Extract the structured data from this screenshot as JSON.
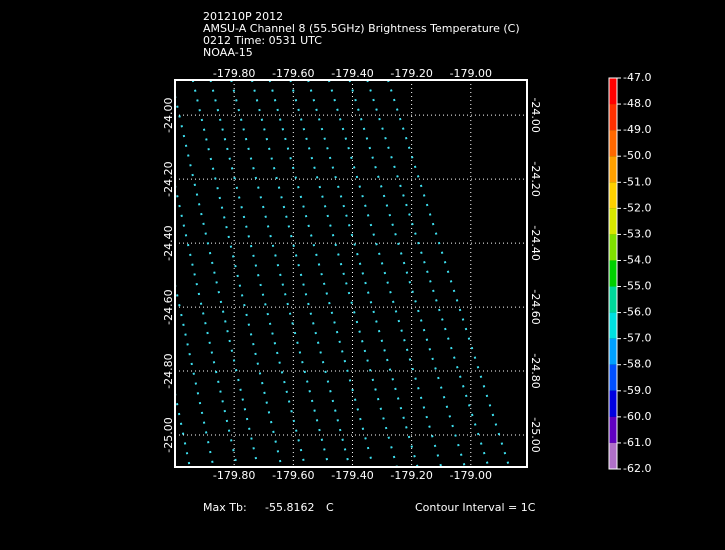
{
  "chart_data": {
    "type": "line",
    "title_lines": [
      "201210P 2012",
      "AMSU-A Channel 8 (55.5GHz) Brightness Temperature (C)",
      "0212 Time: 0531 UTC",
      "NOAA-15"
    ],
    "color": "#3ee0f0",
    "xlim": [
      -180.0,
      -178.81
    ],
    "ylim": [
      -25.1,
      -23.89
    ],
    "xticks": [
      {
        "value": -179.8,
        "label": "-179.80"
      },
      {
        "value": -179.6,
        "label": "-179.60"
      },
      {
        "value": -179.4,
        "label": "-179.40"
      },
      {
        "value": -179.2,
        "label": "-179.20"
      },
      {
        "value": -179.0,
        "label": "-179.00"
      }
    ],
    "yticks": [
      {
        "value": -24.0,
        "label": "-24.00"
      },
      {
        "value": -24.2,
        "label": "-24.20"
      },
      {
        "value": -24.4,
        "label": "-24.40"
      },
      {
        "value": -24.6,
        "label": "-24.60"
      },
      {
        "value": -24.8,
        "label": "-24.80"
      },
      {
        "value": -25.0,
        "label": "-25.00"
      }
    ],
    "grid": true,
    "series": [
      {
        "x": [
          -180.0,
          -179.95
        ],
        "values": [
          -24.87,
          -25.1
        ]
      },
      {
        "x": [
          -180.0,
          -179.87
        ],
        "values": [
          -24.53,
          -25.1
        ]
      },
      {
        "x": [
          -180.0,
          -179.79
        ],
        "values": [
          -24.22,
          -25.1
        ]
      },
      {
        "x": [
          -180.0,
          -179.72
        ],
        "values": [
          -23.94,
          -25.1
        ]
      },
      {
        "x": [
          -179.94,
          -179.64
        ],
        "values": [
          -23.89,
          -25.1
        ]
      },
      {
        "x": [
          -179.88,
          -179.56
        ],
        "values": [
          -23.89,
          -25.1
        ]
      },
      {
        "x": [
          -179.81,
          -179.48
        ],
        "values": [
          -23.89,
          -25.1
        ]
      },
      {
        "x": [
          -179.74,
          -179.41
        ],
        "values": [
          -23.89,
          -25.1
        ]
      },
      {
        "x": [
          -179.68,
          -179.33
        ],
        "values": [
          -23.89,
          -25.1
        ]
      },
      {
        "x": [
          -179.61,
          -179.25
        ],
        "values": [
          -23.89,
          -25.1
        ]
      },
      {
        "x": [
          -179.55,
          -179.18
        ],
        "values": [
          -23.89,
          -25.1
        ]
      },
      {
        "x": [
          -179.48,
          -179.1
        ],
        "values": [
          -23.89,
          -25.1
        ]
      },
      {
        "x": [
          -179.41,
          -179.02
        ],
        "values": [
          -23.89,
          -25.1
        ]
      },
      {
        "x": [
          -179.35,
          -178.94
        ],
        "values": [
          -23.89,
          -25.1
        ]
      },
      {
        "x": [
          -179.28,
          -178.87
        ],
        "values": [
          -23.89,
          -25.1
        ]
      }
    ],
    "colorbar": {
      "clim": [
        -62.0,
        -47.0
      ],
      "ticks": [
        {
          "value": -47,
          "label": "-47.0"
        },
        {
          "value": -48,
          "label": "-48.0"
        },
        {
          "value": -49,
          "label": "-49.0"
        },
        {
          "value": -50,
          "label": "-50.0"
        },
        {
          "value": -51,
          "label": "-51.0"
        },
        {
          "value": -52,
          "label": "-52.0"
        },
        {
          "value": -53,
          "label": "-53.0"
        },
        {
          "value": -54,
          "label": "-54.0"
        },
        {
          "value": -55,
          "label": "-55.0"
        },
        {
          "value": -56,
          "label": "-56.0"
        },
        {
          "value": -57,
          "label": "-57.0"
        },
        {
          "value": -58,
          "label": "-58.0"
        },
        {
          "value": -59,
          "label": "-59.0"
        },
        {
          "value": -60,
          "label": "-60.0"
        },
        {
          "value": -61,
          "label": "-61.0"
        },
        {
          "value": -62,
          "label": "-62.0"
        }
      ],
      "colors": [
        "#ff0000",
        "#ff3000",
        "#ff6800",
        "#ffa000",
        "#ffd000",
        "#d8e800",
        "#80e000",
        "#00d000",
        "#00d89a",
        "#00e0e0",
        "#00a0ff",
        "#0050ff",
        "#0000e0",
        "#6000c0",
        "#b070c8"
      ]
    },
    "footer": {
      "max_label": "Max Tb:",
      "max_value": "-55.8162",
      "max_unit": "C",
      "contour": "Contour Interval = 1C"
    }
  }
}
